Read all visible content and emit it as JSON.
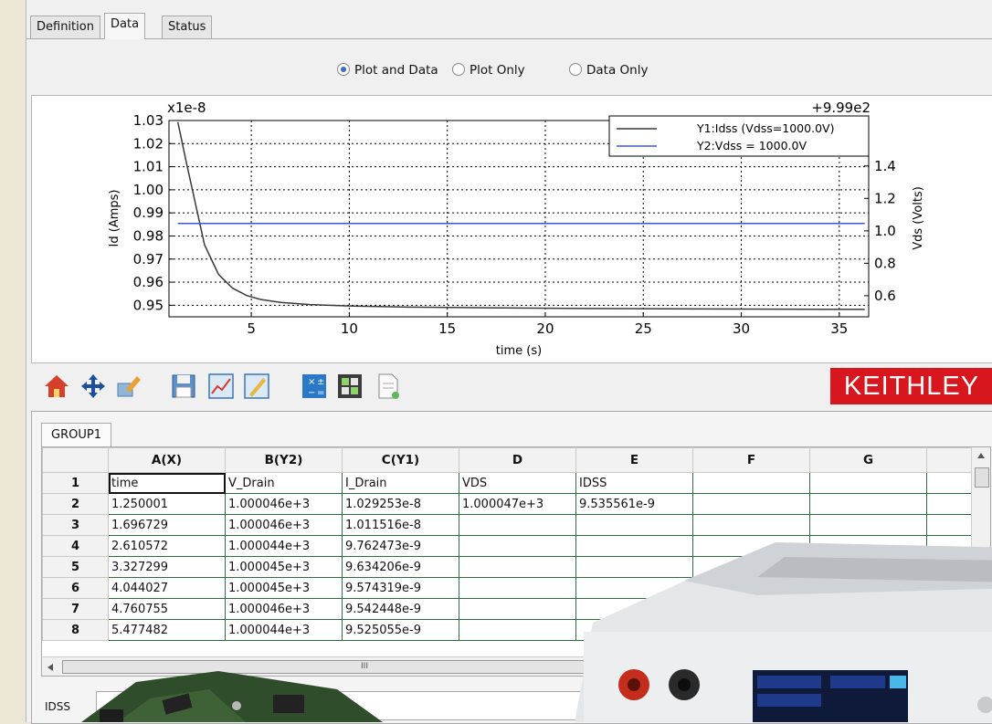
{
  "tabs": [
    "Definition",
    "Data",
    "Status"
  ],
  "active_tab": "Data",
  "view_mode": {
    "options": [
      "Plot and Data",
      "Plot Only",
      "Data Only"
    ],
    "selected": "Plot and Data"
  },
  "chart_data": {
    "type": "line",
    "xlabel": "time (s)",
    "ylabel": "Id (Amps)",
    "y2label": "Vds (Volts)",
    "y_scale_label": "x1e-8",
    "y2_offset_label": "+9.99e2",
    "xlim": [
      0.8,
      36.5
    ],
    "ylim": [
      0.945,
      1.03
    ],
    "y2lim": [
      0.47,
      1.68
    ],
    "xticks": [
      "5",
      "10",
      "15",
      "20",
      "25",
      "30",
      "35"
    ],
    "yticks": [
      "1.03",
      "1.02",
      "1.01",
      "1.00",
      "0.99",
      "0.98",
      "0.97",
      "0.96",
      "0.95"
    ],
    "y2ticks": [
      "1.4",
      "1.2",
      "1.0",
      "0.8",
      "0.6"
    ],
    "grid": true,
    "legend_position": "top-right",
    "series": [
      {
        "name": "Y1:Idss (Vdss=1000.0V)",
        "axis": "left",
        "color": "#3a3a3a",
        "x": [
          1.25,
          1.697,
          2.611,
          3.327,
          4.044,
          4.761,
          5.477,
          6.5,
          8,
          10,
          13,
          17,
          22,
          28,
          36.3
        ],
        "y": [
          1.0293,
          1.0115,
          0.9762,
          0.9634,
          0.9574,
          0.9542,
          0.9525,
          0.9512,
          0.9503,
          0.9497,
          0.9492,
          0.9489,
          0.9486,
          0.9484,
          0.9482
        ]
      },
      {
        "name": "Y2:Vdss = 1000.0V",
        "axis": "right",
        "color": "#3a55e0",
        "x": [
          1.25,
          36.3
        ],
        "y": [
          1.046,
          1.046
        ]
      }
    ]
  },
  "toolbar": {
    "icons": [
      "home-icon",
      "pan-icon",
      "edit-icon",
      "save-icon",
      "chart-icon",
      "configure-icon",
      "calculator-icon",
      "grid-icon",
      "export-icon"
    ],
    "logo": "KEITHLEY",
    "logo_color": "#d8161e"
  },
  "sheet": {
    "tab": "GROUP1",
    "columns": [
      "A(X)",
      "B(Y2)",
      "C(Y1)",
      "D",
      "E",
      "F",
      "G"
    ],
    "rows": [
      [
        "1",
        "time",
        "V_Drain",
        "I_Drain",
        "VDS",
        "IDSS",
        "",
        ""
      ],
      [
        "2",
        "1.250001",
        "1.000046e+3",
        "1.029253e-8",
        "1.000047e+3",
        "9.535561e-9",
        "",
        ""
      ],
      [
        "3",
        "1.696729",
        "1.000046e+3",
        "1.011516e-8",
        "",
        "",
        "",
        ""
      ],
      [
        "4",
        "2.610572",
        "1.000044e+3",
        "9.762473e-9",
        "",
        "",
        "",
        ""
      ],
      [
        "5",
        "3.327299",
        "1.000045e+3",
        "9.634206e-9",
        "",
        "",
        "",
        ""
      ],
      [
        "6",
        "4.044027",
        "1.000045e+3",
        "9.574319e-9",
        "",
        "",
        "",
        ""
      ],
      [
        "7",
        "4.760755",
        "1.000046e+3",
        "9.542448e-9",
        "",
        "",
        "",
        ""
      ],
      [
        "8",
        "5.477482",
        "1.000044e+3",
        "9.525055e-9",
        "",
        "",
        "",
        ""
      ]
    ],
    "scroll_marker": "III"
  },
  "formula_bar": {
    "label": "IDSS",
    "value": ""
  }
}
